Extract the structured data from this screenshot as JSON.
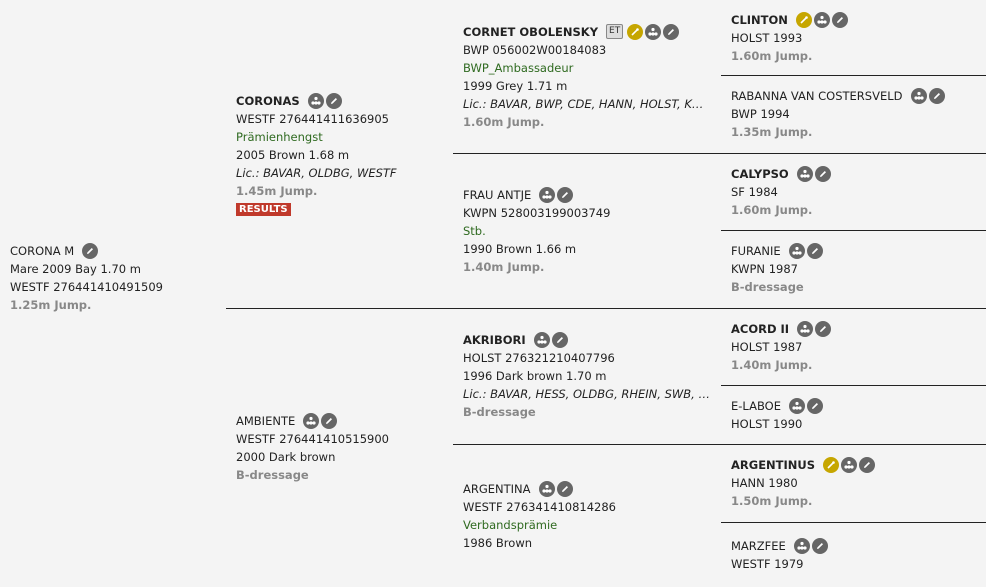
{
  "colors": {
    "accent_gold": "#c6a600",
    "icon_grey": "#666666",
    "results_red": "#c0392b",
    "green_text": "#2f6a20"
  },
  "horse": {
    "name": "CORONA M",
    "line1": "Mare 2009 Bay 1.70 m",
    "line2": "WESTF 276441410491509",
    "disc": "1.25m Jump.",
    "icons": [
      "edit-icon"
    ]
  },
  "sire": {
    "name": "CORONAS",
    "id": "WESTF 276441411636905",
    "title": "Prämienhengst",
    "info": "2005 Brown 1.68 m",
    "lic": "Lic.: BAVAR, OLDBG, WESTF",
    "disc": "1.45m Jump.",
    "results": "RESULTS",
    "icons": [
      "pedigree-icon",
      "edit-icon"
    ]
  },
  "dam": {
    "name": "AMBIENTE",
    "id": "WESTF 276441410515900",
    "info": "2000 Dark brown",
    "disc": "B-dressage",
    "icons": [
      "pedigree-icon",
      "edit-icon"
    ]
  },
  "ss": {
    "name": "CORNET OBOLENSKY",
    "badge": "ET",
    "id": "BWP 056002W00184083",
    "title": "BWP_Ambassadeur",
    "info": "1999 Grey 1.71 m",
    "lic": "Lic.: BAVAR, BWP, CDE, HANN, HOLST, KWPN...",
    "disc": "1.60m Jump.",
    "icons": [
      "semen-icon",
      "pedigree-icon",
      "edit-icon"
    ]
  },
  "sd": {
    "name": "FRAU ANTJE",
    "id": "KWPN 528003199003749",
    "title": "Stb.",
    "info": "1990 Brown 1.66 m",
    "disc": "1.40m Jump.",
    "icons": [
      "pedigree-icon",
      "edit-icon"
    ]
  },
  "ds": {
    "name": "AKRIBORI",
    "id": "HOLST 276321210407796",
    "info": "1996 Dark brown 1.70 m",
    "lic": "Lic.: BAVAR, HESS, OLDBG, RHEIN, SWB, WES...",
    "disc": "B-dressage",
    "icons": [
      "pedigree-icon",
      "edit-icon"
    ]
  },
  "dd": {
    "name": "ARGENTINA",
    "id": "WESTF 276341410814286",
    "title": "Verbandsprämie",
    "info": "1986 Brown",
    "icons": [
      "pedigree-icon",
      "edit-icon"
    ]
  },
  "g": [
    {
      "name": "CLINTON",
      "info": "HOLST 1993",
      "disc": "1.60m Jump."
    },
    {
      "name": "RABANNA VAN COSTERSVELD",
      "info": "BWP 1994",
      "disc": "1.35m Jump."
    },
    {
      "name": "CALYPSO",
      "info": "SF 1984",
      "disc": "1.60m Jump."
    },
    {
      "name": "FURANIE",
      "info": "KWPN 1987",
      "disc": "B-dressage"
    },
    {
      "name": "ACORD II",
      "info": "HOLST 1987",
      "disc": "1.40m Jump."
    },
    {
      "name": "E-LABOE",
      "info": "HOLST 1990"
    },
    {
      "name": "ARGENTINUS",
      "info": "HANN 1980",
      "disc": "1.50m Jump."
    },
    {
      "name": "MARZFEE",
      "info": "WESTF 1979"
    }
  ]
}
